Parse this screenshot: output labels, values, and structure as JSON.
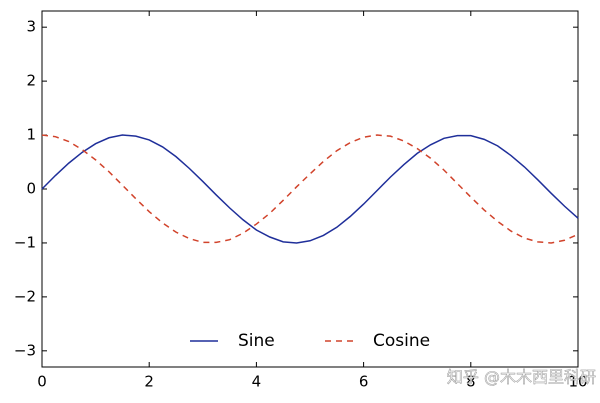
{
  "chart_data": {
    "type": "line",
    "x": [
      0,
      0.25,
      0.5,
      0.75,
      1,
      1.25,
      1.5,
      1.75,
      2,
      2.25,
      2.5,
      2.75,
      3,
      3.25,
      3.5,
      3.75,
      4,
      4.25,
      4.5,
      4.75,
      5,
      5.25,
      5.5,
      5.75,
      6,
      6.25,
      6.5,
      6.75,
      7,
      7.25,
      7.5,
      7.75,
      8,
      8.25,
      8.5,
      8.75,
      9,
      9.25,
      9.5,
      9.75,
      10
    ],
    "series": [
      {
        "name": "Sine",
        "color": "#1f2f9a",
        "linestyle": "solid",
        "values": [
          0,
          0.25,
          0.48,
          0.68,
          0.84,
          0.95,
          1.0,
          0.98,
          0.91,
          0.78,
          0.6,
          0.38,
          0.14,
          -0.11,
          -0.35,
          -0.57,
          -0.76,
          -0.89,
          -0.98,
          -1.0,
          -0.96,
          -0.86,
          -0.71,
          -0.51,
          -0.28,
          -0.03,
          0.22,
          0.45,
          0.66,
          0.82,
          0.94,
          0.99,
          0.99,
          0.92,
          0.8,
          0.62,
          0.41,
          0.17,
          -0.08,
          -0.32,
          -0.54
        ]
      },
      {
        "name": "Cosine",
        "color": "#d1432b",
        "linestyle": "dashed",
        "values": [
          1,
          0.97,
          0.88,
          0.73,
          0.54,
          0.32,
          0.07,
          -0.18,
          -0.42,
          -0.63,
          -0.8,
          -0.92,
          -0.99,
          -0.99,
          -0.94,
          -0.82,
          -0.65,
          -0.45,
          -0.21,
          0.04,
          0.28,
          0.51,
          0.71,
          0.86,
          0.96,
          1.0,
          0.98,
          0.89,
          0.75,
          0.57,
          0.35,
          0.1,
          -0.15,
          -0.39,
          -0.6,
          -0.78,
          -0.91,
          -0.98,
          -1.0,
          -0.95,
          -0.84
        ]
      }
    ],
    "xlim": [
      0,
      10
    ],
    "xticks": [
      0,
      2,
      4,
      6,
      8,
      10
    ],
    "ylim": [
      -3.3,
      3.3
    ],
    "yticks": [
      {
        "value": -3,
        "label": "−3"
      },
      {
        "value": -2,
        "label": "−2"
      },
      {
        "value": -1,
        "label": "−1"
      },
      0,
      1,
      2,
      3
    ],
    "legend": {
      "loc": "lower center",
      "frameon": false
    },
    "watermark": "知乎 @木木西里科研"
  }
}
